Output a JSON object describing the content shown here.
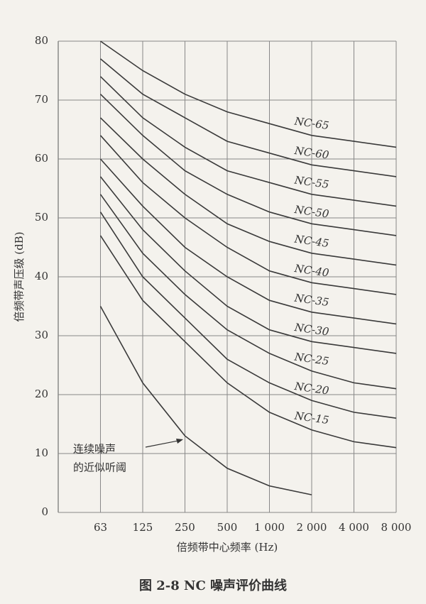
{
  "chart_data": {
    "type": "line",
    "caption": "图 2-8   NC 噪声评价曲线",
    "x_label": "倍频带中心频率 (Hz)",
    "y_label": "倍频带声压级 (dB)",
    "categories": [
      "63",
      "125",
      "250",
      "500",
      "1 000",
      "2 000",
      "4 000",
      "8 000"
    ],
    "ylim": [
      0,
      80
    ],
    "yticks": [
      0,
      10,
      20,
      30,
      40,
      50,
      60,
      70,
      80
    ],
    "grid": true,
    "color": "#3a3a3a",
    "series": [
      {
        "name": "NC-65",
        "values": [
          80,
          75,
          71,
          68,
          66,
          64,
          63,
          62
        ]
      },
      {
        "name": "NC-60",
        "values": [
          77,
          71,
          67,
          63,
          61,
          59,
          58,
          57
        ]
      },
      {
        "name": "NC-55",
        "values": [
          74,
          67,
          62,
          58,
          56,
          54,
          53,
          52
        ]
      },
      {
        "name": "NC-50",
        "values": [
          71,
          64,
          58,
          54,
          51,
          49,
          48,
          47
        ]
      },
      {
        "name": "NC-45",
        "values": [
          67,
          60,
          54,
          49,
          46,
          44,
          43,
          42
        ]
      },
      {
        "name": "NC-40",
        "values": [
          64,
          56,
          50,
          45,
          41,
          39,
          38,
          37
        ]
      },
      {
        "name": "NC-35",
        "values": [
          60,
          52,
          45,
          40,
          36,
          34,
          33,
          32
        ]
      },
      {
        "name": "NC-30",
        "values": [
          57,
          48,
          41,
          35,
          31,
          29,
          28,
          27
        ]
      },
      {
        "name": "NC-25",
        "values": [
          54,
          44,
          37,
          31,
          27,
          24,
          22,
          21
        ]
      },
      {
        "name": "NC-20",
        "values": [
          51,
          40,
          33,
          26,
          22,
          19,
          17,
          16
        ]
      },
      {
        "name": "NC-15",
        "values": [
          47,
          36,
          29,
          22,
          17,
          14,
          12,
          11
        ]
      },
      {
        "values": [
          35,
          22,
          13,
          7.5,
          4.5,
          3,
          null,
          null
        ]
      }
    ],
    "annotation": [
      "连续噪声",
      "的近似听阈"
    ]
  }
}
